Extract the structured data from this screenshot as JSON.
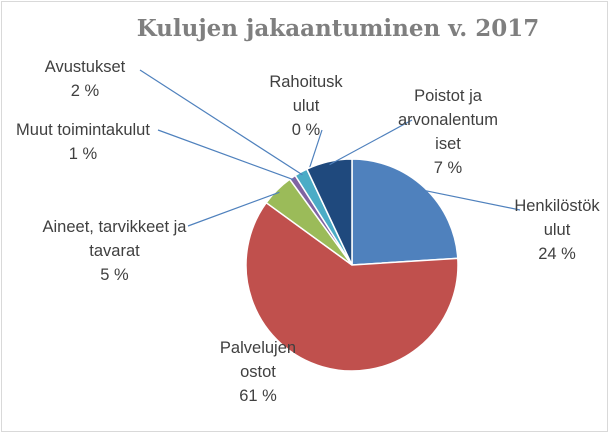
{
  "chart_data": {
    "type": "pie",
    "title": "Kulujen jakaantuminen v. 2017",
    "categories": [
      "Henkilöstökulut",
      "Palvelujen ostot",
      "Aineet, tarvikkeet ja tavarat",
      "Muut toimintakulut",
      "Avustukset",
      "Rahoituskulut",
      "Poistot ja arvonalentumiset"
    ],
    "values": [
      24,
      61,
      5,
      1,
      2,
      0,
      7
    ],
    "value_labels": [
      "24 %",
      "61 %",
      "5 %",
      "1 %",
      "2 %",
      "0 %",
      "7 %"
    ],
    "colors": [
      "#4f81bd",
      "#c0504d",
      "#9bbb59",
      "#8064a2",
      "#4bacc6",
      "#f79646",
      "#1f497d"
    ]
  }
}
